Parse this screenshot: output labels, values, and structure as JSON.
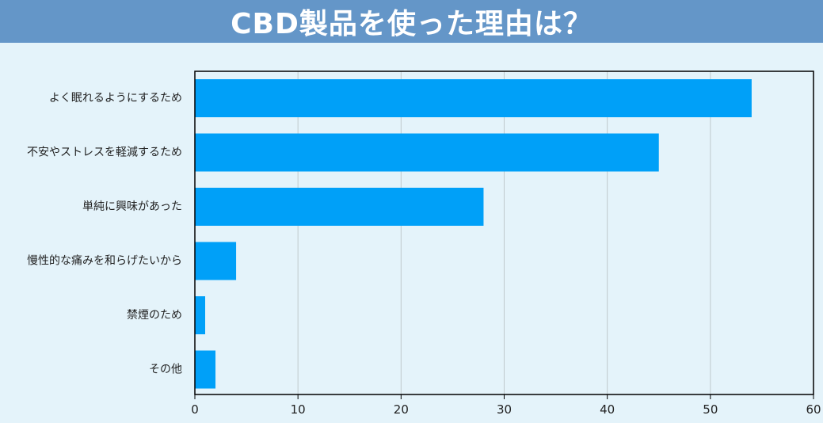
{
  "chart_data": {
    "type": "bar",
    "orientation": "horizontal",
    "title": "CBD製品を使った理由は？",
    "categories": [
      "よく眠れるようにするため",
      "不安やストレスを軽減するため",
      "単純に興味があった",
      "慢性的な痛みを和らげたいから",
      "禁煙のため",
      "その他"
    ],
    "values": [
      54,
      45,
      28,
      4,
      1,
      2
    ],
    "xlim": [
      0,
      60
    ],
    "xticks": [
      "0",
      "10",
      "20",
      "30",
      "40",
      "50",
      "60"
    ],
    "xlabel": "",
    "ylabel": "",
    "grid": true,
    "legend": "none",
    "colors": {
      "bar": "#00a0f8",
      "title_bg": "#6496c8",
      "plot_bg": "#e4f3fa",
      "grid": "#bfc9cc"
    }
  }
}
